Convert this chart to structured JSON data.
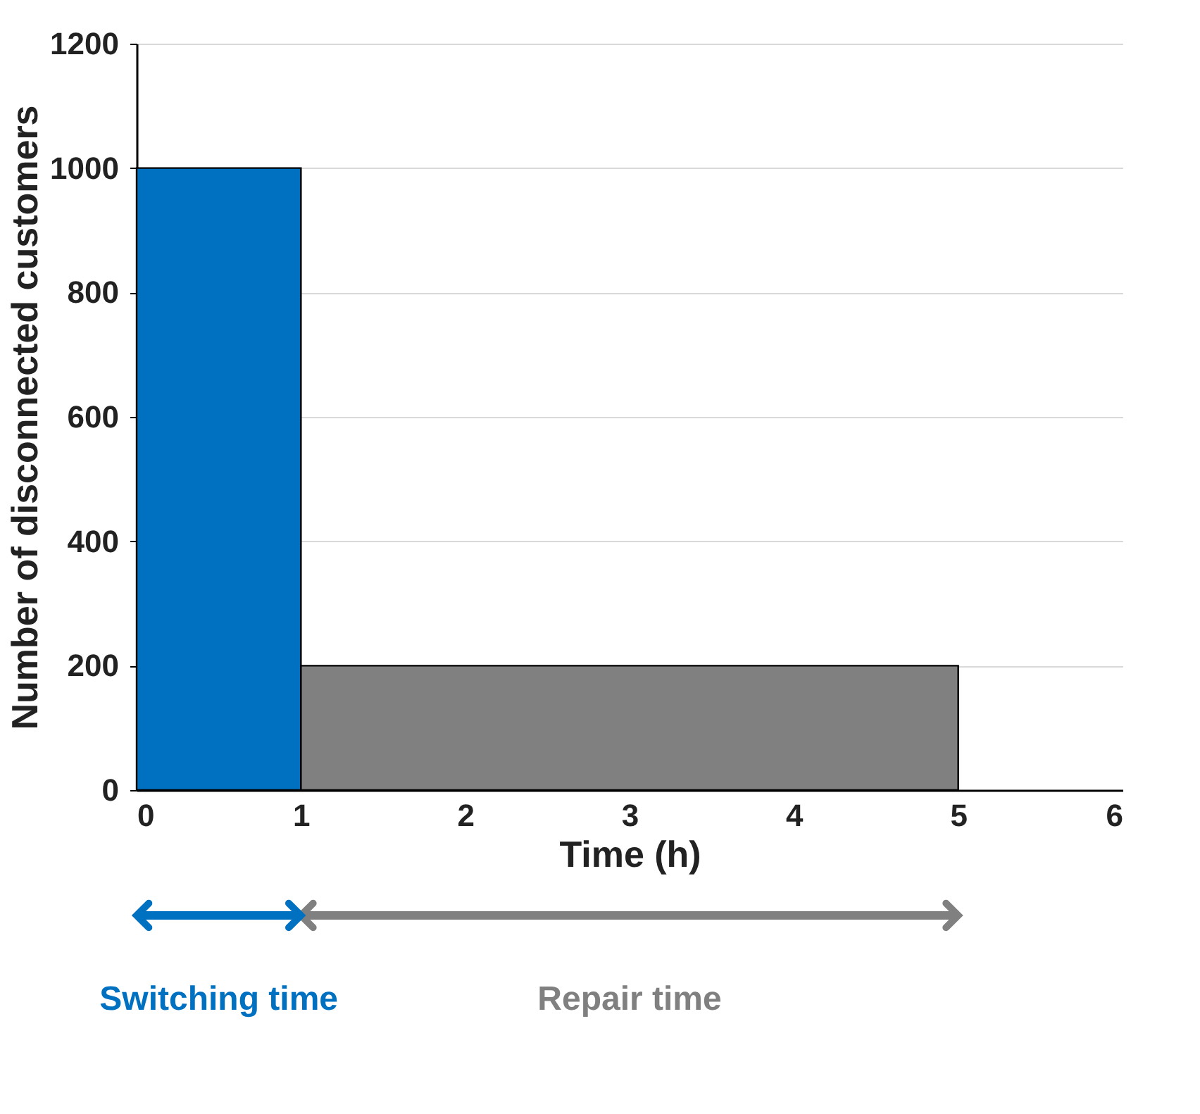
{
  "chart_data": {
    "type": "histogram",
    "bins": [
      0,
      1,
      5
    ],
    "values": [
      1000,
      200
    ],
    "colors": [
      "#0070c0",
      "#808080"
    ],
    "xlabel": "Time (h)",
    "ylabel": "Number of disconnected customers",
    "xlim": [
      0,
      6
    ],
    "xticks": [
      0,
      1,
      2,
      3,
      4,
      5,
      6
    ],
    "ylim": [
      0,
      1200
    ],
    "yticks": [
      0,
      200,
      400,
      600,
      800,
      1000,
      1200
    ],
    "grid": "y",
    "annotations": [
      "Switching time",
      "Repair time"
    ]
  }
}
